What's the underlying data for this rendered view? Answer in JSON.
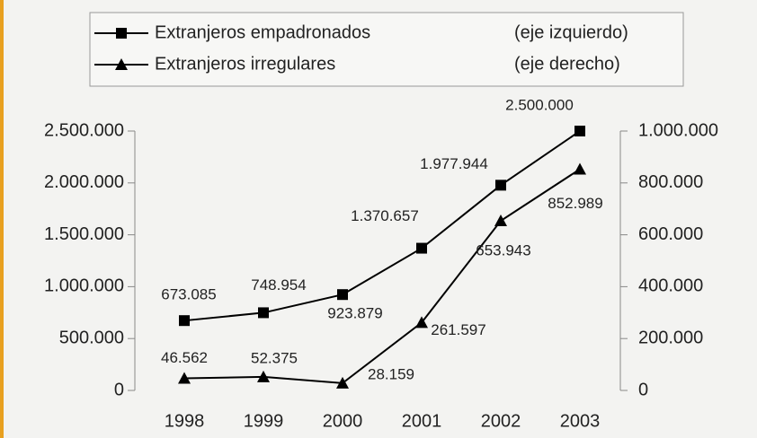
{
  "chart_data": {
    "type": "line",
    "categories": [
      "1998",
      "1999",
      "2000",
      "2001",
      "2002",
      "2003"
    ],
    "series": [
      {
        "name": "Extranjeros empadronados",
        "legend_note": "(eje izquierdo)",
        "color": "#000000",
        "marker": "square",
        "values": [
          673085,
          748954,
          923879,
          1370657,
          1977944,
          2500000
        ],
        "value_labels": [
          "673.085",
          "748.954",
          "923.879",
          "1.370.657",
          "1.977.944",
          "2.500.000"
        ]
      },
      {
        "name": "Extranjeros irregulares",
        "legend_note": "(eje derecho)",
        "color": "#000000",
        "marker": "triangle",
        "axis": "y2",
        "values": [
          46562,
          52375,
          28159,
          261597,
          653943,
          852989
        ],
        "value_labels": [
          "46.562",
          "52.375",
          "28.159",
          "261.597",
          "653.943",
          "852.989"
        ]
      }
    ],
    "ylim": [
      0,
      2500000
    ],
    "yticks": [
      0,
      {
        "value": 500000,
        "label": "500.000"
      },
      {
        "value": 1000000,
        "label": "1.000.000"
      },
      {
        "value": 1500000,
        "label": "1.500.000"
      },
      {
        "value": 2000000,
        "label": "2.000.000"
      },
      {
        "value": 2500000,
        "label": "2.500.000"
      }
    ],
    "y2lim": [
      0,
      1000000
    ],
    "y2ticks": [
      0,
      {
        "value": 200000,
        "label": "200.000"
      },
      {
        "value": 400000,
        "label": "400.000"
      },
      {
        "value": 600000,
        "label": "600.000"
      },
      {
        "value": 800000,
        "label": "800.000"
      },
      {
        "value": 1000000,
        "label": "1.000.000"
      }
    ],
    "grid": false
  }
}
